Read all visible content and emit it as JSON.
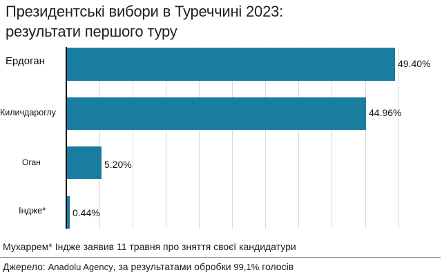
{
  "title": {
    "line1": "Президентські вибори в Туреччині 2023:",
    "line2": "результати першого туру"
  },
  "chart_data": {
    "type": "bar",
    "orientation": "horizontal",
    "title": "Президентські вибори в Туреччині 2023: результати першого туру",
    "categories": [
      "Ердоган",
      "Киличдароглу",
      "Оган",
      "Індже*"
    ],
    "values": [
      49.4,
      44.96,
      5.2,
      0.44
    ],
    "value_labels": [
      "49.40%",
      "44.96%",
      "5.20%",
      "0.44%"
    ],
    "xlabel": "",
    "ylabel": "",
    "xlim": [
      0,
      50
    ],
    "grid": true,
    "grid_step": 5,
    "bar_color": "#187d9e",
    "legend": null
  },
  "footnote": "Мухаррем* Індже заявив 11 травня про зняття своєї кандидатури",
  "source": {
    "prefix": "Джерело:",
    "agency": "Anadolu Agency",
    "suffix": ", за результатами обробки",
    "percent": "99,1%",
    "end": "голосів"
  }
}
